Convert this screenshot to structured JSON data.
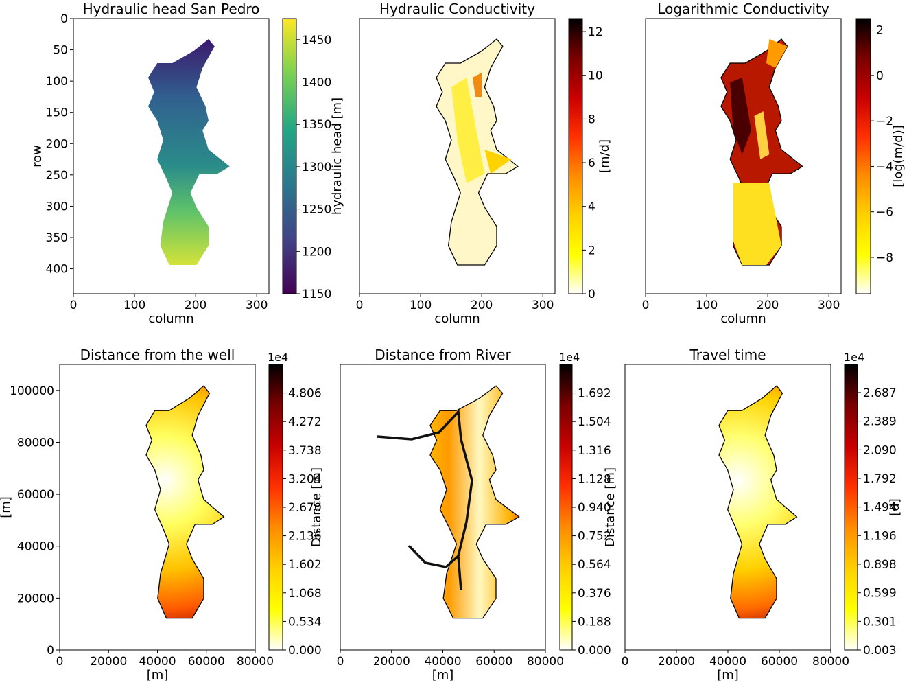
{
  "colors": {
    "viridis": [
      "#440154",
      "#414487",
      "#2a788e",
      "#22a884",
      "#7ad151",
      "#fde725"
    ],
    "hot_r": [
      "#ffffff",
      "#ffff00",
      "#ffd000",
      "#ff8c00",
      "#ff3000",
      "#c80000",
      "#7a0000",
      "#000000"
    ],
    "outline": "#000000",
    "river": "#111111"
  },
  "chart_data": [
    {
      "type": "heatmap",
      "title": "Hydraulic head San Pedro",
      "xlabel": "column",
      "ylabel": "row",
      "xlim": [
        0,
        320
      ],
      "ylim": [
        440,
        0
      ],
      "xticks": [
        "0",
        "100",
        "200",
        "300"
      ],
      "yticks": [
        "0",
        "50",
        "100",
        "150",
        "200",
        "250",
        "300",
        "350",
        "400"
      ],
      "colorbar": {
        "label": "hydraulic head [m]",
        "colormap": "viridis",
        "range": [
          1150,
          1475
        ],
        "ticks": [
          "1150",
          "1200",
          "1250",
          "1300",
          "1350",
          "1400",
          "1450"
        ]
      }
    },
    {
      "type": "heatmap",
      "title": "Hydraulic Conductivity",
      "xlabel": "column",
      "ylabel": "",
      "xlim": [
        0,
        320
      ],
      "ylim": [
        440,
        0
      ],
      "xticks": [
        "0",
        "100",
        "200",
        "300"
      ],
      "yticks": [],
      "colorbar": {
        "label": "[m/d]",
        "colormap": "hot_r",
        "range": [
          0,
          12.6
        ],
        "ticks": [
          "0",
          "2",
          "4",
          "6",
          "8",
          "10",
          "12"
        ]
      }
    },
    {
      "type": "heatmap",
      "title": "Logarithmic Conductivity",
      "xlabel": "column",
      "ylabel": "",
      "xlim": [
        0,
        320
      ],
      "ylim": [
        440,
        0
      ],
      "xticks": [
        "0",
        "100",
        "200",
        "300"
      ],
      "yticks": [],
      "colorbar": {
        "label": "[log(m/d)]",
        "colormap": "hot_r",
        "range": [
          -9.6,
          2.5
        ],
        "ticks": [
          "−8",
          "−6",
          "−4",
          "−2",
          "0",
          "2"
        ]
      }
    },
    {
      "type": "heatmap",
      "title": "Distance from the well",
      "xlabel": "[m]",
      "ylabel": "[m]",
      "xlim": [
        0,
        80000
      ],
      "ylim": [
        0,
        110000
      ],
      "xticks": [
        "0",
        "20000",
        "40000",
        "60000",
        "80000"
      ],
      "yticks": [
        "0",
        "20000",
        "40000",
        "60000",
        "80000",
        "100000"
      ],
      "colorbar": {
        "label": "Distance [m]",
        "colormap": "hot_r",
        "offset_text": "1e4",
        "range": [
          0,
          5.34
        ],
        "ticks": [
          "0.000",
          "0.534",
          "1.068",
          "1.602",
          "2.136",
          "2.670",
          "3.204",
          "3.738",
          "4.272",
          "4.806"
        ]
      }
    },
    {
      "type": "heatmap",
      "title": "Distance from River",
      "xlabel": "[m]",
      "ylabel": "",
      "xlim": [
        0,
        80000
      ],
      "ylim": [
        0,
        110000
      ],
      "xticks": [
        "0",
        "20000",
        "40000",
        "60000",
        "80000"
      ],
      "yticks": [],
      "colorbar": {
        "label": "Distance [m]",
        "colormap": "hot_r",
        "offset_text": "1e4",
        "range": [
          0,
          1.88
        ],
        "ticks": [
          "0.000",
          "0.188",
          "0.376",
          "0.564",
          "0.752",
          "0.940",
          "1.128",
          "1.316",
          "1.504",
          "1.692"
        ]
      }
    },
    {
      "type": "heatmap",
      "title": "Travel time",
      "xlabel": "[m]",
      "ylabel": "",
      "xlim": [
        0,
        80000
      ],
      "ylim": [
        0,
        110000
      ],
      "xticks": [
        "0",
        "20000",
        "40000",
        "60000",
        "80000"
      ],
      "yticks": [],
      "colorbar": {
        "label": "[d]",
        "colormap": "hot_r",
        "offset_text": "1e4",
        "range": [
          0.003,
          2.98
        ],
        "ticks": [
          "0.003",
          "0.301",
          "0.599",
          "0.898",
          "1.196",
          "1.494",
          "1.792",
          "2.090",
          "2.389",
          "2.687"
        ]
      }
    }
  ]
}
